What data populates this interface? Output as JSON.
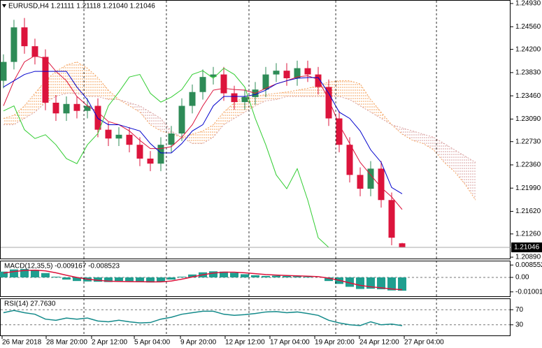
{
  "chart_data": [
    {
      "type": "candlestick",
      "title": "EURUSD,H4  1.21111 1.21118 1.21040 1.21046",
      "xlim": [
        -0.33,
        48.33
      ],
      "ylim": [
        1.20857,
        1.24986
      ],
      "yticks": [
        {
          "value": 1.2493,
          "label": "1.24930"
        },
        {
          "value": 1.2456,
          "label": "1.24560"
        },
        {
          "value": 1.242,
          "label": "1.24200"
        },
        {
          "value": 1.2383,
          "label": "1.23830"
        },
        {
          "value": 1.2346,
          "label": "1.23460"
        },
        {
          "value": 1.2309,
          "label": "1.23090"
        },
        {
          "value": 1.2273,
          "label": "1.22730"
        },
        {
          "value": 1.2236,
          "label": "1.22360"
        },
        {
          "value": 1.2199,
          "label": "1.21990"
        },
        {
          "value": 1.2162,
          "label": "1.21620"
        },
        {
          "value": 1.2126,
          "label": "1.21260"
        },
        {
          "value": 1.2089,
          "label": "1.20890"
        }
      ],
      "up_color": "#2e8b57",
      "down_color": "#dc143c",
      "open": [
        1.237,
        1.24,
        1.2455,
        1.2425,
        1.2408,
        1.2335,
        1.2318,
        1.2333,
        1.2322,
        1.233,
        1.2292,
        1.2278,
        1.2284,
        1.2268,
        1.2246,
        1.2238,
        1.2268,
        1.2286,
        1.233,
        1.2352,
        1.2376,
        1.238,
        1.235,
        1.2336,
        1.2344,
        1.2356,
        1.238,
        1.2386,
        1.2374,
        1.239,
        1.238,
        1.236,
        1.231,
        1.2268,
        1.222,
        1.2198,
        1.223,
        1.218,
        1.21111
      ],
      "high": [
        1.2412,
        1.2467,
        1.247,
        1.2437,
        1.242,
        1.2347,
        1.2345,
        1.2345,
        1.2342,
        1.2342,
        1.2304,
        1.2296,
        1.2296,
        1.228,
        1.2258,
        1.228,
        1.2298,
        1.2342,
        1.2364,
        1.2388,
        1.2392,
        1.2392,
        1.2362,
        1.2356,
        1.2368,
        1.2392,
        1.2398,
        1.2398,
        1.2402,
        1.2402,
        1.2392,
        1.2372,
        1.2322,
        1.228,
        1.2232,
        1.2242,
        1.2242,
        1.2192,
        1.21118
      ],
      "low": [
        1.2358,
        1.2388,
        1.2413,
        1.2396,
        1.2323,
        1.2306,
        1.2306,
        1.231,
        1.231,
        1.228,
        1.2266,
        1.2266,
        1.2256,
        1.2234,
        1.2226,
        1.2226,
        1.2256,
        1.2274,
        1.2318,
        1.234,
        1.2364,
        1.2338,
        1.2324,
        1.2324,
        1.2332,
        1.2344,
        1.2368,
        1.2362,
        1.2362,
        1.2368,
        1.2348,
        1.2298,
        1.2256,
        1.2208,
        1.2186,
        1.2186,
        1.2168,
        1.2108,
        1.2104
      ],
      "close": [
        1.24,
        1.2455,
        1.2425,
        1.2408,
        1.2335,
        1.2318,
        1.2333,
        1.2322,
        1.233,
        1.2292,
        1.2278,
        1.2284,
        1.2268,
        1.2246,
        1.2238,
        1.2268,
        1.2286,
        1.233,
        1.2352,
        1.2376,
        1.238,
        1.235,
        1.2336,
        1.2344,
        1.2356,
        1.238,
        1.2386,
        1.2374,
        1.239,
        1.238,
        1.236,
        1.231,
        1.2268,
        1.222,
        1.2198,
        1.223,
        1.218,
        1.212,
        1.21046
      ],
      "cloud": {
        "span_a": {
          "color": "#f4a460",
          "values": [
            1.231,
            1.2315,
            1.233,
            1.235,
            1.237,
            1.2385,
            1.2395,
            1.24,
            1.239,
            1.2375,
            1.2355,
            1.234,
            1.233,
            1.232,
            1.23,
            1.229,
            1.2285,
            1.228,
            1.2285,
            1.229,
            1.23,
            1.232,
            1.2335,
            1.2345,
            1.2345,
            1.2348,
            1.235,
            1.2352,
            1.2355,
            1.2358,
            1.2362,
            1.2368,
            1.237,
            1.237,
            1.2365,
            1.234,
            1.232,
            1.23,
            1.2285,
            1.2275,
            1.227,
            1.226,
            1.224,
            1.2225,
            1.2205,
            1.218
          ]
        },
        "span_b": {
          "color": "#d8a0a0",
          "values": [
            1.23,
            1.23,
            1.231,
            1.232,
            1.2335,
            1.2345,
            1.235,
            1.235,
            1.2345,
            1.2345,
            1.234,
            1.234,
            1.2335,
            1.233,
            1.232,
            1.231,
            1.229,
            1.228,
            1.227,
            1.227,
            1.228,
            1.23,
            1.231,
            1.232,
            1.233,
            1.2338,
            1.234,
            1.2345,
            1.2345,
            1.2345,
            1.2345,
            1.2345,
            1.2345,
            1.234,
            1.233,
            1.232,
            1.231,
            1.23,
            1.2295,
            1.229,
            1.2285,
            1.228,
            1.227,
            1.226,
            1.225,
            1.224
          ]
        }
      },
      "lines": [
        {
          "color": "#dc143c",
          "values": [
            1.233,
            1.237,
            1.24,
            1.241,
            1.2405,
            1.2385,
            1.237,
            1.2345,
            1.233,
            1.232,
            1.2305,
            1.23,
            1.229,
            1.2275,
            1.2262,
            1.2262,
            1.2265,
            1.228,
            1.23,
            1.233,
            1.2355,
            1.2358,
            1.2356,
            1.2355,
            1.235,
            1.2358,
            1.2365,
            1.237,
            1.2376,
            1.2378,
            1.2372,
            1.234,
            1.23,
            1.227,
            1.224,
            1.222,
            1.22,
            1.2185,
            1.2165
          ]
        },
        {
          "color": "#0000cd",
          "values": [
            1.236,
            1.237,
            1.238,
            1.2385,
            1.2385,
            1.2385,
            1.2385,
            1.236,
            1.234,
            1.231,
            1.23,
            1.23,
            1.2295,
            1.229,
            1.227,
            1.2255,
            1.2255,
            1.227,
            1.229,
            1.23,
            1.233,
            1.2345,
            1.2345,
            1.2345,
            1.2348,
            1.2355,
            1.2365,
            1.237,
            1.2374,
            1.2375,
            1.2375,
            1.235,
            1.232,
            1.231,
            1.229,
            1.226,
            1.224,
            1.22,
            1.219
          ]
        },
        {
          "color": "#32cd32",
          "values": [
            1.2322,
            1.233,
            1.2292,
            1.2278,
            1.2284,
            1.2268,
            1.2246,
            1.2238,
            1.2268,
            1.2286,
            1.233,
            1.2352,
            1.2376,
            1.238,
            1.235,
            1.2336,
            1.2344,
            1.2356,
            1.238,
            1.2386,
            1.2374,
            1.239,
            1.238,
            1.236,
            1.231,
            1.2268,
            1.222,
            1.2198,
            1.223,
            1.218,
            1.212,
            1.21046
          ]
        }
      ],
      "price_line_color": "#a9a9a9"
    },
    {
      "type": "macd",
      "title": "MACD(12,35,5) -0.009167 -0.008523",
      "xlim": [
        -0.33,
        48.33
      ],
      "ylim": [
        -0.01353,
        0.01157
      ],
      "yticks": [
        0.008552,
        {
          "value": 0,
          "label": "0.00"
        },
        -0.010011
      ],
      "levels": [
        0
      ],
      "histogram": {
        "color": "#1f9e8f",
        "values": [
          0.004,
          0.0055,
          0.0058,
          0.0052,
          0.003,
          0.0005,
          -0.0015,
          -0.0025,
          -0.0028,
          -0.003,
          -0.0032,
          -0.003,
          -0.003,
          -0.0032,
          -0.0035,
          -0.003,
          -0.0015,
          0.0005,
          0.002,
          0.0035,
          0.0042,
          0.004,
          0.0032,
          0.0022,
          0.0015,
          0.001,
          0.0012,
          0.001,
          0.0008,
          0.0005,
          0.0,
          -0.0025,
          -0.0045,
          -0.0065,
          -0.008,
          -0.0078,
          -0.0082,
          -0.009,
          -0.009167
        ]
      },
      "signal": {
        "color": "#dc143c",
        "values": [
          0.003,
          0.004,
          0.0048,
          0.005,
          0.0045,
          0.0032,
          0.0015,
          0.0,
          -0.0012,
          -0.002,
          -0.0026,
          -0.0028,
          -0.0029,
          -0.003,
          -0.0031,
          -0.0031,
          -0.0025,
          -0.0012,
          0.0003,
          0.0018,
          0.003,
          0.0036,
          0.0036,
          0.0032,
          0.0026,
          0.002,
          0.0016,
          0.0013,
          0.0011,
          0.0008,
          0.0005,
          -0.0005,
          -0.002,
          -0.0038,
          -0.0055,
          -0.0065,
          -0.0072,
          -0.008,
          -0.008523
        ]
      }
    },
    {
      "type": "line",
      "title": "RSI(14) 27.7630",
      "xlim": [
        -0.33,
        48.33
      ],
      "ylim": [
        0,
        100
      ],
      "yticks": [
        70,
        30
      ],
      "levels": [
        70,
        30
      ],
      "color": "#138a8a",
      "values": [
        62,
        68,
        62,
        58,
        45,
        42,
        48,
        45,
        48,
        40,
        38,
        42,
        38,
        35,
        36,
        45,
        50,
        58,
        62,
        66,
        66,
        58,
        55,
        57,
        60,
        64,
        65,
        62,
        64,
        60,
        55,
        42,
        35,
        30,
        28,
        38,
        30,
        32,
        27.763
      ],
      "xticks": [
        {
          "value": -0.13,
          "label": "26 Mar 2018"
        },
        {
          "value": 4.07,
          "label": "28 Mar 20:00"
        },
        {
          "value": 8.4,
          "label": "2 Apr 12:00"
        },
        {
          "value": 12.47,
          "label": "5 Apr 04:00"
        },
        {
          "value": 16.87,
          "label": "9 Apr 20:00"
        },
        {
          "value": 21.13,
          "label": "12 Apr 12:00"
        },
        {
          "value": 25.4,
          "label": "17 Apr 04:00"
        },
        {
          "value": 29.67,
          "label": "19 Apr 20:00"
        },
        {
          "value": 33.93,
          "label": "24 Apr 12:00"
        },
        {
          "value": 38.2,
          "label": "27 Apr 04:00"
        }
      ],
      "xgrid": [
        7.67,
        15.53,
        23.4,
        31.67,
        41.27
      ]
    }
  ]
}
